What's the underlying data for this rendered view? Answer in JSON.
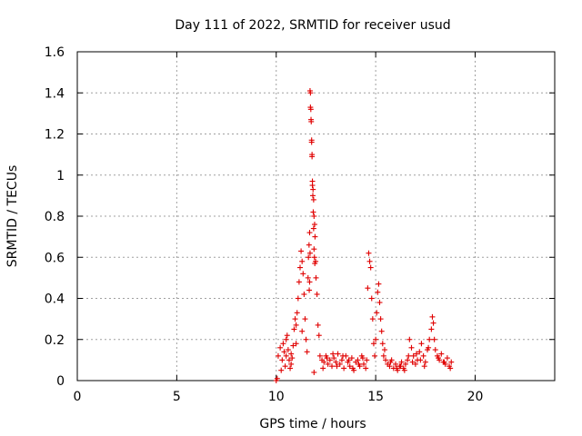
{
  "chart_data": {
    "type": "scatter",
    "title": "Day 111 of 2022, SRMTID for receiver usud",
    "xlabel": "GPS time / hours",
    "ylabel": "SRMTID / TECUs",
    "xlim": [
      0,
      24
    ],
    "ylim": [
      0,
      1.6
    ],
    "xticks": [
      0,
      5,
      10,
      15,
      20
    ],
    "xtick_labels": [
      "0",
      "5",
      "10",
      "15",
      "20"
    ],
    "yticks": [
      0,
      0.2,
      0.4,
      0.6,
      0.8,
      1.0,
      1.2,
      1.4,
      1.6
    ],
    "ytick_labels": [
      "0",
      "0.2",
      "0.4",
      "0.6",
      "0.8",
      "1",
      "1.2",
      "1.4",
      "1.6"
    ],
    "grid": true,
    "marker": "+",
    "marker_color": "#e00000",
    "series": [
      {
        "name": "SRMTID",
        "x": [
          10.0,
          10.05,
          10.1,
          10.2,
          10.3,
          10.35,
          10.4,
          10.45,
          10.5,
          10.55,
          10.6,
          10.65,
          10.7,
          10.75,
          10.8,
          10.85,
          10.9,
          10.95,
          11.0,
          11.05,
          11.1,
          11.15,
          11.2,
          11.25,
          11.3,
          11.35,
          11.4,
          11.45,
          11.5,
          11.55,
          11.6,
          11.62,
          11.65,
          11.68,
          11.7,
          11.72,
          11.75,
          11.78,
          11.8,
          11.82,
          11.85,
          11.88,
          11.9,
          11.93,
          11.95,
          11.98,
          12.0,
          12.05,
          12.1,
          12.15,
          12.2,
          12.3,
          12.4,
          12.5,
          12.6,
          12.7,
          12.8,
          12.9,
          13.0,
          13.1,
          13.2,
          13.3,
          13.4,
          13.5,
          13.6,
          13.7,
          13.8,
          13.9,
          14.0,
          14.1,
          14.2,
          14.3,
          14.4,
          14.5,
          14.55,
          14.6,
          14.65,
          14.7,
          14.75,
          14.8,
          14.85,
          14.9,
          14.95,
          15.0,
          15.05,
          15.1,
          15.15,
          15.2,
          15.25,
          15.3,
          15.35,
          15.4,
          15.5,
          15.6,
          15.7,
          15.8,
          15.9,
          16.0,
          16.1,
          16.2,
          16.3,
          16.4,
          16.5,
          16.6,
          16.7,
          16.8,
          16.9,
          17.0,
          17.1,
          17.2,
          17.3,
          17.4,
          17.5,
          17.6,
          17.7,
          17.8,
          17.85,
          17.9,
          17.95,
          18.0,
          18.1,
          18.2,
          18.3,
          18.4,
          18.5,
          18.6,
          18.7,
          18.8,
          11.72,
          11.74,
          11.76,
          11.78,
          11.8,
          11.82,
          11.84,
          11.86,
          11.88,
          11.9,
          11.92,
          11.94,
          11.7,
          11.68,
          11.66,
          10.25,
          10.5,
          10.75,
          11.0,
          11.3,
          11.9,
          12.35,
          12.55,
          12.85,
          13.05,
          13.35,
          13.65,
          13.85,
          14.15,
          14.35,
          15.45,
          15.75,
          16.05,
          16.25,
          16.45,
          16.65,
          16.85,
          17.05,
          17.25,
          17.45,
          17.65,
          18.15,
          18.45,
          18.75
        ],
        "y": [
          0.0,
          0.01,
          0.12,
          0.16,
          0.1,
          0.18,
          0.14,
          0.07,
          0.2,
          0.22,
          0.15,
          0.1,
          0.06,
          0.13,
          0.11,
          0.17,
          0.25,
          0.3,
          0.27,
          0.33,
          0.4,
          0.48,
          0.55,
          0.63,
          0.58,
          0.52,
          0.42,
          0.3,
          0.2,
          0.14,
          0.5,
          0.6,
          0.66,
          0.72,
          1.41,
          1.33,
          1.27,
          1.17,
          1.1,
          0.97,
          0.93,
          0.88,
          0.8,
          0.76,
          0.7,
          0.58,
          0.5,
          0.42,
          0.27,
          0.22,
          0.12,
          0.1,
          0.09,
          0.12,
          0.08,
          0.1,
          0.07,
          0.11,
          0.09,
          0.13,
          0.08,
          0.1,
          0.06,
          0.12,
          0.09,
          0.07,
          0.11,
          0.05,
          0.09,
          0.1,
          0.07,
          0.12,
          0.08,
          0.06,
          0.1,
          0.45,
          0.62,
          0.58,
          0.55,
          0.4,
          0.3,
          0.18,
          0.12,
          0.2,
          0.33,
          0.43,
          0.47,
          0.38,
          0.3,
          0.24,
          0.18,
          0.12,
          0.1,
          0.08,
          0.07,
          0.1,
          0.06,
          0.08,
          0.05,
          0.07,
          0.09,
          0.06,
          0.08,
          0.1,
          0.2,
          0.16,
          0.12,
          0.08,
          0.1,
          0.14,
          0.18,
          0.12,
          0.09,
          0.15,
          0.2,
          0.25,
          0.31,
          0.28,
          0.2,
          0.15,
          0.12,
          0.1,
          0.13,
          0.09,
          0.08,
          0.11,
          0.07,
          0.09,
          1.4,
          1.32,
          1.26,
          1.16,
          1.09,
          0.95,
          0.9,
          0.82,
          0.74,
          0.64,
          0.6,
          0.57,
          0.62,
          0.48,
          0.44,
          0.05,
          0.12,
          0.08,
          0.18,
          0.24,
          0.04,
          0.06,
          0.11,
          0.13,
          0.07,
          0.12,
          0.1,
          0.06,
          0.08,
          0.11,
          0.15,
          0.09,
          0.06,
          0.07,
          0.05,
          0.12,
          0.09,
          0.13,
          0.1,
          0.07,
          0.16,
          0.11,
          0.09,
          0.06
        ]
      }
    ]
  }
}
